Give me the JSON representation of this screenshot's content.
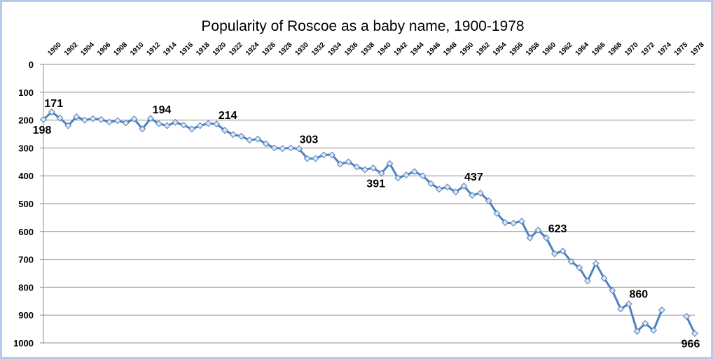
{
  "chart_data": {
    "type": "line",
    "title": "Popularity of Roscoe as a baby name, 1900-1978",
    "xlabel": "",
    "ylabel": "",
    "ylim": [
      0,
      1000
    ],
    "y_inverted": true,
    "y_ticks": [
      0,
      100,
      200,
      300,
      400,
      500,
      600,
      700,
      800,
      900,
      1000
    ],
    "x_tick_labels": [
      "1900",
      "1902",
      "1904",
      "1906",
      "1908",
      "1910",
      "1912",
      "1914",
      "1916",
      "1918",
      "1920",
      "1922",
      "1924",
      "1926",
      "1928",
      "1930",
      "1932",
      "1934",
      "1936",
      "1938",
      "1940",
      "1942",
      "1944",
      "1946",
      "1948",
      "1950",
      "1952",
      "1954",
      "1956",
      "1958",
      "1960",
      "1962",
      "1964",
      "1966",
      "1968",
      "1970",
      "1972",
      "1974",
      "1975",
      "1978"
    ],
    "grid": true,
    "legend": "none",
    "colors": {
      "line": "#4f81bd",
      "marker_fill": "#dbe5f4",
      "marker_stroke": "#4f81bd",
      "grid": "#8c8c8c",
      "frame": "#b6c9ea"
    },
    "series": [
      {
        "points": [
          {
            "x": 1899,
            "y": 198
          },
          {
            "x": 1900,
            "y": 171
          },
          {
            "x": 1901,
            "y": 193
          },
          {
            "x": 1902,
            "y": 220
          },
          {
            "x": 1903,
            "y": 188
          },
          {
            "x": 1904,
            "y": 200
          },
          {
            "x": 1905,
            "y": 195
          },
          {
            "x": 1906,
            "y": 198
          },
          {
            "x": 1907,
            "y": 207
          },
          {
            "x": 1908,
            "y": 202
          },
          {
            "x": 1909,
            "y": 210
          },
          {
            "x": 1910,
            "y": 196
          },
          {
            "x": 1911,
            "y": 232
          },
          {
            "x": 1912,
            "y": 194
          },
          {
            "x": 1913,
            "y": 213
          },
          {
            "x": 1914,
            "y": 220
          },
          {
            "x": 1915,
            "y": 208
          },
          {
            "x": 1916,
            "y": 218
          },
          {
            "x": 1917,
            "y": 232
          },
          {
            "x": 1918,
            "y": 220
          },
          {
            "x": 1919,
            "y": 212
          },
          {
            "x": 1920,
            "y": 214
          },
          {
            "x": 1921,
            "y": 237
          },
          {
            "x": 1922,
            "y": 252
          },
          {
            "x": 1923,
            "y": 258
          },
          {
            "x": 1924,
            "y": 272
          },
          {
            "x": 1925,
            "y": 268
          },
          {
            "x": 1926,
            "y": 285
          },
          {
            "x": 1927,
            "y": 300
          },
          {
            "x": 1928,
            "y": 302
          },
          {
            "x": 1929,
            "y": 300
          },
          {
            "x": 1930,
            "y": 303
          },
          {
            "x": 1931,
            "y": 338
          },
          {
            "x": 1932,
            "y": 338
          },
          {
            "x": 1933,
            "y": 325
          },
          {
            "x": 1934,
            "y": 325
          },
          {
            "x": 1935,
            "y": 358
          },
          {
            "x": 1936,
            "y": 350
          },
          {
            "x": 1937,
            "y": 368
          },
          {
            "x": 1938,
            "y": 378
          },
          {
            "x": 1939,
            "y": 372
          },
          {
            "x": 1940,
            "y": 391
          },
          {
            "x": 1941,
            "y": 356
          },
          {
            "x": 1942,
            "y": 408
          },
          {
            "x": 1943,
            "y": 397
          },
          {
            "x": 1944,
            "y": 385
          },
          {
            "x": 1945,
            "y": 400
          },
          {
            "x": 1946,
            "y": 428
          },
          {
            "x": 1947,
            "y": 448
          },
          {
            "x": 1948,
            "y": 440
          },
          {
            "x": 1949,
            "y": 458
          },
          {
            "x": 1950,
            "y": 437
          },
          {
            "x": 1951,
            "y": 470
          },
          {
            "x": 1952,
            "y": 462
          },
          {
            "x": 1953,
            "y": 490
          },
          {
            "x": 1954,
            "y": 535
          },
          {
            "x": 1955,
            "y": 568
          },
          {
            "x": 1956,
            "y": 570
          },
          {
            "x": 1957,
            "y": 563
          },
          {
            "x": 1958,
            "y": 623
          },
          {
            "x": 1959,
            "y": 595
          },
          {
            "x": 1960,
            "y": 623
          },
          {
            "x": 1961,
            "y": 680
          },
          {
            "x": 1962,
            "y": 670
          },
          {
            "x": 1963,
            "y": 708
          },
          {
            "x": 1964,
            "y": 730
          },
          {
            "x": 1965,
            "y": 778
          },
          {
            "x": 1966,
            "y": 715
          },
          {
            "x": 1967,
            "y": 768
          },
          {
            "x": 1968,
            "y": 812
          },
          {
            "x": 1969,
            "y": 878
          },
          {
            "x": 1970,
            "y": 860
          },
          {
            "x": 1971,
            "y": 958
          },
          {
            "x": 1972,
            "y": 930
          },
          {
            "x": 1973,
            "y": 955
          },
          {
            "x": 1974,
            "y": 882
          },
          {
            "x": 1975,
            "y": null
          },
          {
            "x": 1976,
            "y": null
          },
          {
            "x": 1977,
            "y": 905
          },
          {
            "x": 1978,
            "y": 966
          }
        ]
      }
    ],
    "annotations": [
      {
        "x": 1899,
        "y": 198,
        "text": "198"
      },
      {
        "x": 1900,
        "y": 171,
        "text": "171"
      },
      {
        "x": 1912,
        "y": 194,
        "text": "194"
      },
      {
        "x": 1920,
        "y": 214,
        "text": "214"
      },
      {
        "x": 1930,
        "y": 303,
        "text": "303"
      },
      {
        "x": 1940,
        "y": 391,
        "text": "391"
      },
      {
        "x": 1950,
        "y": 437,
        "text": "437"
      },
      {
        "x": 1960,
        "y": 623,
        "text": "623"
      },
      {
        "x": 1970,
        "y": 860,
        "text": "860"
      },
      {
        "x": 1978,
        "y": 966,
        "text": "966"
      }
    ]
  }
}
